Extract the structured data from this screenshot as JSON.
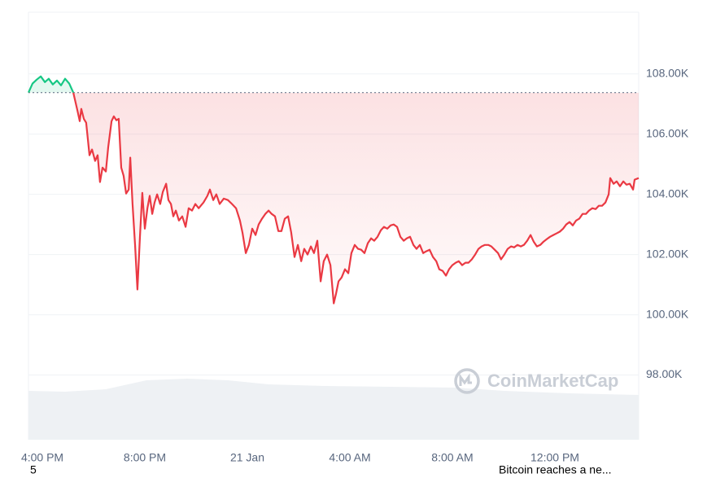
{
  "chart_data": {
    "type": "line",
    "watermark": "CoinMarketCap",
    "annotations": [
      "5",
      "Bitcoin reaches a ne..."
    ],
    "x": [
      15.46,
      15.62,
      15.78,
      15.94,
      16.1,
      16.25,
      16.41,
      16.57,
      16.73,
      16.89,
      17.05,
      17.21,
      17.37,
      17.46,
      17.52,
      17.62,
      17.71,
      17.84,
      17.94,
      18.06,
      18.16,
      18.25,
      18.35,
      18.48,
      18.57,
      18.7,
      18.79,
      18.89,
      18.98,
      19.08,
      19.17,
      19.27,
      19.37,
      19.43,
      19.52,
      19.62,
      19.71,
      19.81,
      19.9,
      20.0,
      20.1,
      20.19,
      20.29,
      20.38,
      20.48,
      20.6,
      20.7,
      20.83,
      20.92,
      21.02,
      21.11,
      21.21,
      21.33,
      21.46,
      21.59,
      21.71,
      21.84,
      21.97,
      22.1,
      22.29,
      22.44,
      22.54,
      22.67,
      22.79,
      22.92,
      23.08,
      23.24,
      23.4,
      23.56,
      23.71,
      23.81,
      23.94,
      24.06,
      24.19,
      24.32,
      24.44,
      24.57,
      24.7,
      24.83,
      24.95,
      25.08,
      25.21,
      25.33,
      25.46,
      25.59,
      25.71,
      25.84,
      25.97,
      26.1,
      26.22,
      26.35,
      26.48,
      26.6,
      26.73,
      26.86,
      26.98,
      27.11,
      27.24,
      27.37,
      27.46,
      27.56,
      27.68,
      27.81,
      27.94,
      28.06,
      28.19,
      28.32,
      28.44,
      28.57,
      28.7,
      28.83,
      28.95,
      29.08,
      29.21,
      29.33,
      29.46,
      29.59,
      29.71,
      29.84,
      29.97,
      30.1,
      30.22,
      30.35,
      30.48,
      30.6,
      30.73,
      30.86,
      30.98,
      31.11,
      31.24,
      31.37,
      31.49,
      31.62,
      31.75,
      31.87,
      32.0,
      32.13,
      32.25,
      32.38,
      32.51,
      32.63,
      32.76,
      32.89,
      33.02,
      33.14,
      33.27,
      33.4,
      33.52,
      33.65,
      33.78,
      33.9,
      34.03,
      34.16,
      34.29,
      34.41,
      34.54,
      34.67,
      34.79,
      34.92,
      35.05,
      35.17,
      35.3,
      35.43,
      35.56,
      35.68,
      35.81,
      35.94,
      36.06,
      36.19,
      36.32,
      36.44,
      36.57,
      36.7,
      36.83,
      36.95,
      37.08,
      37.21,
      37.33,
      37.46,
      37.59,
      37.71,
      37.84,
      37.97,
      38.1,
      38.16,
      38.29,
      38.41,
      38.54,
      38.67,
      38.79,
      38.92,
      39.05,
      39.11,
      39.27
    ],
    "values": [
      107380,
      107680,
      107810,
      107920,
      107730,
      107840,
      107650,
      107780,
      107620,
      107840,
      107680,
      107380,
      106780,
      106430,
      106840,
      106510,
      106380,
      105300,
      105490,
      105110,
      105300,
      104410,
      104890,
      104760,
      105570,
      106430,
      106590,
      106460,
      106510,
      104890,
      104620,
      104030,
      104160,
      105220,
      103680,
      102320,
      100840,
      102590,
      104050,
      102860,
      103540,
      103950,
      103350,
      103730,
      104000,
      103680,
      104080,
      104350,
      103810,
      103680,
      103270,
      103460,
      103130,
      103270,
      102920,
      103540,
      103460,
      103680,
      103540,
      103730,
      103950,
      104160,
      103810,
      104000,
      103680,
      103860,
      103810,
      103680,
      103540,
      103130,
      102730,
      102050,
      102320,
      102860,
      102650,
      103000,
      103190,
      103350,
      103460,
      103350,
      103270,
      102780,
      102780,
      103190,
      103270,
      102730,
      101920,
      102320,
      101780,
      102190,
      102000,
      102270,
      102050,
      102460,
      101110,
      101780,
      102000,
      101650,
      100380,
      100700,
      101110,
      101240,
      101510,
      101380,
      102050,
      102320,
      102190,
      102160,
      102050,
      102380,
      102540,
      102460,
      102590,
      102810,
      102920,
      102860,
      102970,
      103000,
      102920,
      102590,
      102460,
      102540,
      102590,
      102320,
      102190,
      102320,
      102050,
      102110,
      102160,
      101920,
      101780,
      101510,
      101460,
      101300,
      101510,
      101650,
      101730,
      101780,
      101650,
      101730,
      101730,
      101840,
      102000,
      102190,
      102270,
      102320,
      102320,
      102270,
      102160,
      102050,
      101840,
      102000,
      102190,
      102270,
      102240,
      102320,
      102270,
      102320,
      102460,
      102650,
      102430,
      102270,
      102320,
      102430,
      102510,
      102590,
      102650,
      102700,
      102760,
      102860,
      103000,
      103080,
      102970,
      103130,
      103190,
      103350,
      103350,
      103460,
      103540,
      103510,
      103620,
      103620,
      103730,
      104000,
      104540,
      104350,
      104430,
      104270,
      104430,
      104320,
      104350,
      104160,
      104490,
      104540
    ],
    "baseline": 107380,
    "up_color": "#16c784",
    "down_color": "#ea3943",
    "xlim": [
      15.46,
      39.27
    ],
    "xticks": [
      {
        "value": 16,
        "label": "4:00 PM"
      },
      {
        "value": 20,
        "label": "8:00 PM"
      },
      {
        "value": 24,
        "label": "21 Jan"
      },
      {
        "value": 28,
        "label": "4:00 AM"
      },
      {
        "value": 32,
        "label": "8:00 AM"
      },
      {
        "value": 36,
        "label": "12:00 PM"
      }
    ],
    "ylim": [
      95850,
      110050
    ],
    "yticks": [
      {
        "value": 98000,
        "label": "98.00K"
      },
      {
        "value": 100000,
        "label": "100.00K"
      },
      {
        "value": 102000,
        "label": "102.00K"
      },
      {
        "value": 104000,
        "label": "104.00K"
      },
      {
        "value": 106000,
        "label": "106.00K"
      },
      {
        "value": 108000,
        "label": "108.00K"
      }
    ],
    "grid": true
  }
}
